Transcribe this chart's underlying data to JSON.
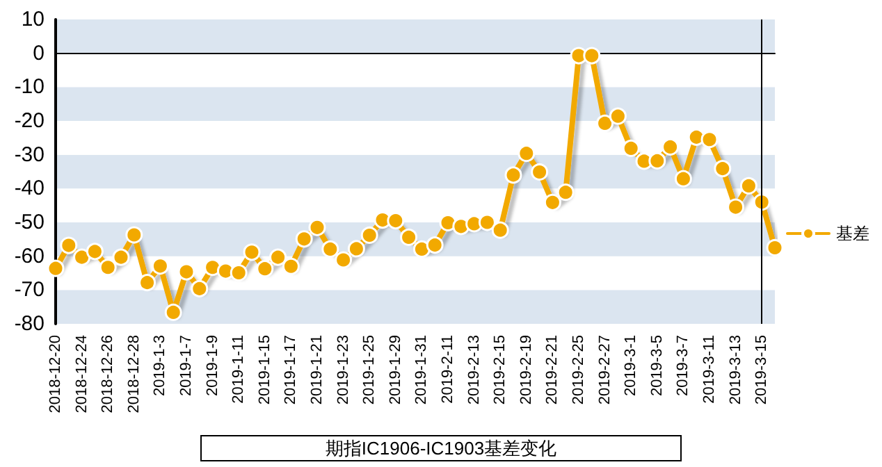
{
  "chart_data": {
    "type": "line",
    "title": "期指IC1906-IC1903基差变化",
    "categories": [
      "2018-12-20",
      null,
      "2018-12-24",
      null,
      "2018-12-26",
      null,
      "2018-12-28",
      null,
      "2019-1-3",
      null,
      "2019-1-7",
      null,
      "2019-1-9",
      null,
      "2019-1-11",
      null,
      "2019-1-15",
      null,
      "2019-1-17",
      null,
      "2019-1-21",
      null,
      "2019-1-23",
      null,
      "2019-1-25",
      null,
      "2019-1-29",
      null,
      "2019-1-31",
      null,
      "2019-2-11",
      null,
      "2019-2-13",
      null,
      "2019-2-15",
      null,
      "2019-2-19",
      null,
      "2019-2-21",
      null,
      "2019-2-25",
      null,
      "2019-2-27",
      null,
      "2019-3-1",
      null,
      "2019-3-5",
      null,
      "2019-3-7",
      null,
      "2019-3-11",
      null,
      "2019-3-13",
      null,
      "2019-3-15",
      null
    ],
    "series": [
      {
        "name": "基差",
        "color": "#f2a900",
        "values": [
          -63.6,
          -56.8,
          -60.3,
          -58.6,
          -63.3,
          -60.3,
          -53.7,
          -67.8,
          -62.9,
          -76.6,
          -64.6,
          -69.6,
          -63.3,
          -64.4,
          -64.9,
          -58.8,
          -63.7,
          -60.3,
          -63.0,
          -54.9,
          -51.5,
          -57.9,
          -61.1,
          -57.8,
          -53.8,
          -49.3,
          -49.5,
          -54.4,
          -57.9,
          -56.7,
          -50.1,
          -51.2,
          -50.4,
          -50.0,
          -52.3,
          -36.0,
          -29.6,
          -35.1,
          -44.1,
          -41.1,
          -0.7,
          -0.7,
          -20.7,
          -18.6,
          -28.1,
          -31.9,
          -31.8,
          -27.7,
          -37.1,
          -24.8,
          -25.5,
          -34.1,
          -45.5,
          -39.2,
          -44.0,
          -57.5
        ]
      }
    ],
    "ylim": [
      -80,
      10
    ],
    "yticks": [
      -80,
      -70,
      -60,
      -50,
      -40,
      -30,
      -20,
      -10,
      0,
      10
    ],
    "ref_lines": [
      {
        "axis": "x",
        "value": "2019-3-15",
        "color": "#000000"
      }
    ],
    "grid": "y",
    "legend": "right",
    "marker": "circle",
    "line_style": "solid"
  }
}
